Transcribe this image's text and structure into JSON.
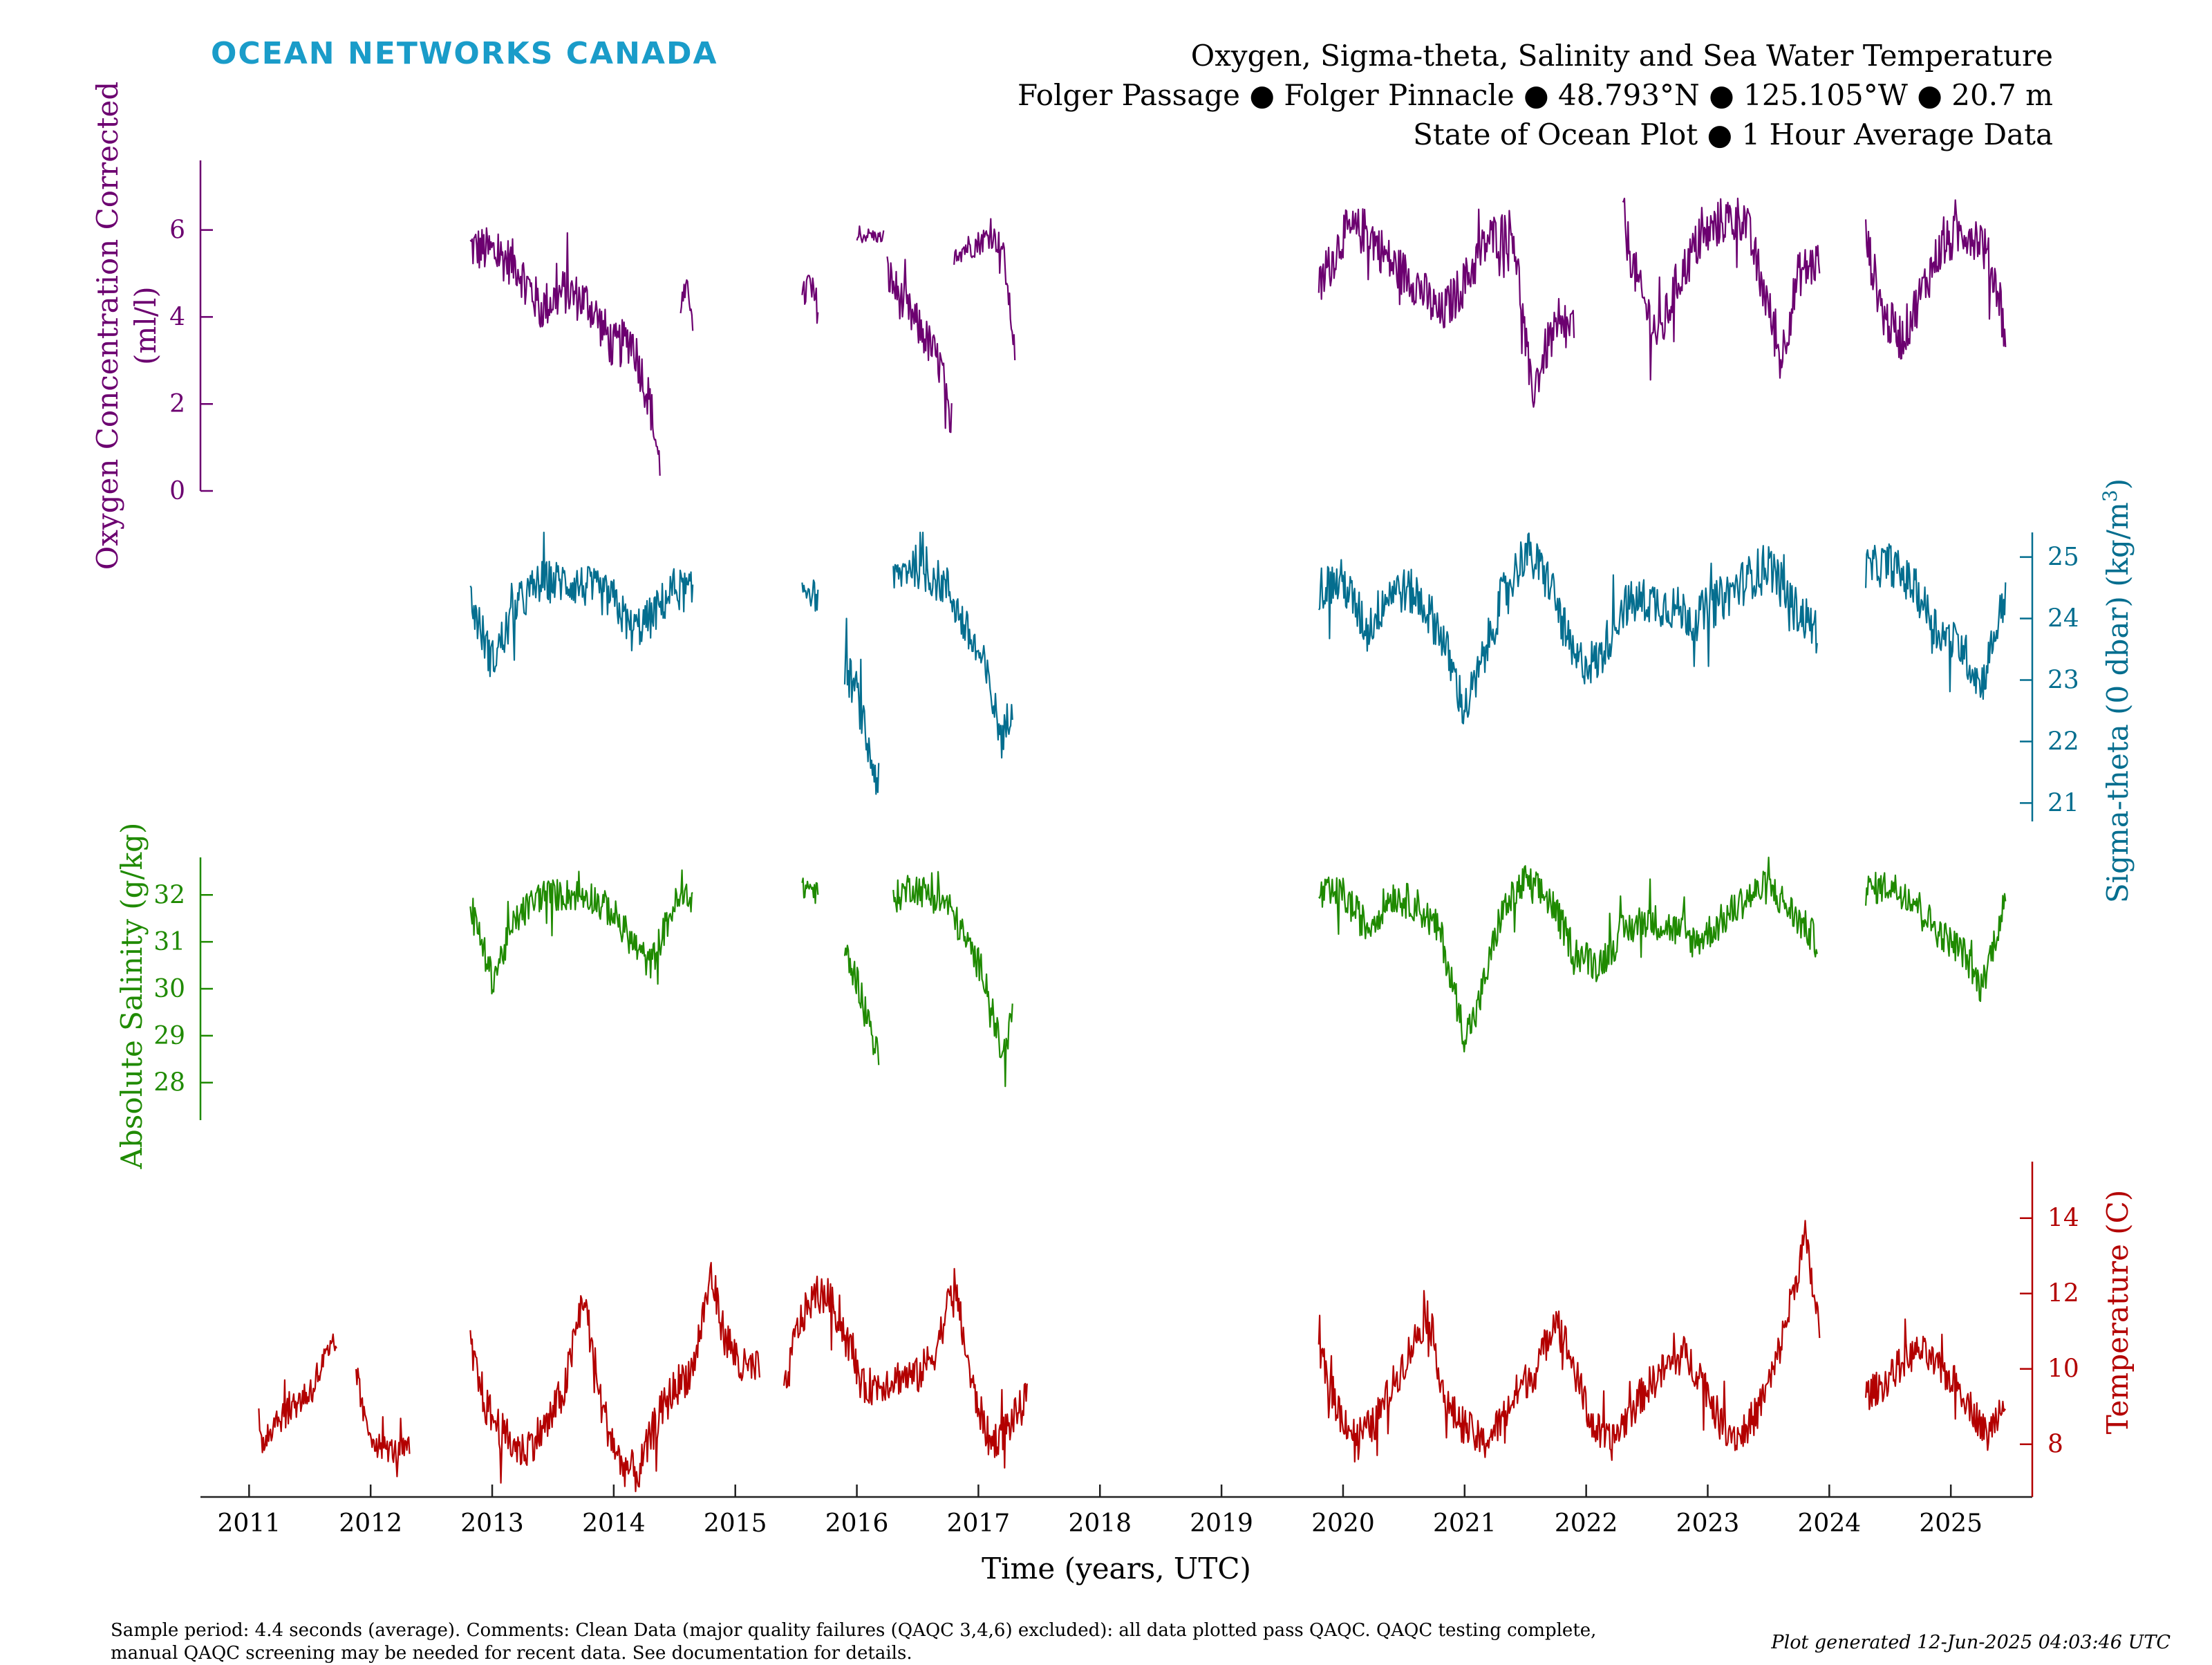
{
  "header": {
    "brand": "OCEAN NETWORKS CANADA",
    "title_line1": "Oxygen, Sigma-theta, Salinity and Sea Water Temperature",
    "title_line2": "Folger Passage ● Folger Pinnacle ● 48.793°N ● 125.105°W ● 20.7 m",
    "title_line3": "State of Ocean Plot ● 1 Hour Average Data"
  },
  "footer": {
    "comments_line1": "Sample period: 4.4 seconds (average). Comments: Clean Data (major quality failures (QAQC 3,4,6) excluded): all data plotted pass QAQC. QAQC testing complete,",
    "comments_line2": "manual QAQC screening may be needed for recent data. See documentation for details.",
    "generated": "Plot generated 12-Jun-2025 04:03:46 UTC"
  },
  "chart_data": {
    "type": "line",
    "xlabel": "Time (years, UTC)",
    "xlim": [
      2010.6,
      2025.67
    ],
    "x_ticks": [
      2011,
      2012,
      2013,
      2014,
      2015,
      2016,
      2017,
      2018,
      2019,
      2020,
      2021,
      2022,
      2023,
      2024,
      2025
    ],
    "colors": {
      "oxygen": "#6c0070",
      "sigma": "#046e8f",
      "salinity": "#1f8a00",
      "temperature": "#b30000",
      "brand": "#1a9cc9"
    },
    "panels": [
      {
        "key": "oxygen",
        "ylabel_line1": "Oxygen Concentration Corrected",
        "ylabel_line2": "(ml/l)",
        "axis_side": "left",
        "ylim": [
          0,
          7.6
        ],
        "ticks": [
          0,
          2,
          4,
          6
        ],
        "segments": [
          {
            "x": [
              2012.82,
              2013.0,
              2013.2,
              2013.4,
              2013.6,
              2013.8,
              2014.0,
              2014.15,
              2014.3,
              2014.38
            ],
            "y": [
              5.6,
              5.5,
              5.2,
              4.2,
              4.6,
              4.3,
              3.3,
              3.5,
              2.0,
              0.5
            ],
            "noise": 0.55
          },
          {
            "x": [
              2014.55,
              2014.6,
              2014.65
            ],
            "y": [
              4.3,
              4.6,
              4.2
            ],
            "noise": 0.3
          },
          {
            "x": [
              2015.55,
              2015.6,
              2015.68
            ],
            "y": [
              4.3,
              4.8,
              4.2
            ],
            "noise": 0.4
          },
          {
            "x": [
              2016.0,
              2016.1,
              2016.22
            ],
            "y": [
              5.8,
              5.9,
              5.8
            ],
            "noise": 0.15
          },
          {
            "x": [
              2016.25,
              2016.4,
              2016.55,
              2016.7,
              2016.78
            ],
            "y": [
              5.0,
              4.2,
              3.6,
              2.8,
              1.0
            ],
            "noise": 0.5
          },
          {
            "x": [
              2016.8,
              2016.9,
              2017.0,
              2017.1,
              2017.2,
              2017.3
            ],
            "y": [
              5.5,
              5.6,
              5.7,
              5.9,
              5.6,
              3.2
            ],
            "noise": 0.3
          },
          {
            "x": [
              2019.8,
              2020.0,
              2020.2,
              2020.4,
              2020.6,
              2020.8,
              2021.0,
              2021.2,
              2021.4,
              2021.55,
              2021.7,
              2021.9
            ],
            "y": [
              4.6,
              5.9,
              6.0,
              5.2,
              4.8,
              4.0,
              4.8,
              5.8,
              6.0,
              2.2,
              3.5,
              3.8
            ],
            "noise": 0.55
          },
          {
            "x": [
              2022.3,
              2022.45,
              2022.6,
              2022.75,
              2022.9,
              2023.1,
              2023.3,
              2023.5,
              2023.6,
              2023.75,
              2023.92
            ],
            "y": [
              6.2,
              4.5,
              3.5,
              4.8,
              5.6,
              6.2,
              6.3,
              4.2,
              3.0,
              5.0,
              5.3
            ],
            "noise": 0.55
          },
          {
            "x": [
              2024.3,
              2024.45,
              2024.6,
              2024.75,
              2024.9,
              2025.1,
              2025.25,
              2025.4,
              2025.45
            ],
            "y": [
              5.8,
              4.0,
              3.5,
              4.5,
              5.5,
              6.0,
              5.8,
              4.5,
              3.5
            ],
            "noise": 0.55
          }
        ]
      },
      {
        "key": "sigma",
        "ylabel_line1": "Sigma-theta (0 dbar) (kg/m",
        "ylabel_sup": "3",
        "ylabel_end": ")",
        "axis_side": "right",
        "ylim": [
          20.7,
          25.4
        ],
        "ticks": [
          21,
          22,
          23,
          24,
          25
        ],
        "segments": [
          {
            "x": [
              2012.82,
              2013.0,
              2013.2,
              2013.4,
              2013.6,
              2013.8,
              2014.0,
              2014.15,
              2014.3,
              2014.5,
              2014.65
            ],
            "y": [
              24.3,
              23.3,
              24.2,
              24.6,
              24.6,
              24.5,
              24.3,
              23.8,
              24.0,
              24.5,
              24.4
            ],
            "noise": 0.35
          },
          {
            "x": [
              2015.55,
              2015.6,
              2015.68
            ],
            "y": [
              24.5,
              24.5,
              24.3
            ],
            "noise": 0.25
          },
          {
            "x": [
              2015.9,
              2016.0,
              2016.1,
              2016.18
            ],
            "y": [
              23.2,
              22.8,
              21.8,
              21.3
            ],
            "noise": 0.35
          },
          {
            "x": [
              2016.3,
              2016.45,
              2016.6,
              2016.75,
              2016.9,
              2017.05,
              2017.2,
              2017.28
            ],
            "y": [
              24.6,
              24.9,
              24.7,
              24.5,
              23.8,
              23.2,
              22.0,
              22.7
            ],
            "noise": 0.35
          },
          {
            "x": [
              2019.8,
              2020.0,
              2020.2,
              2020.4,
              2020.6,
              2020.8,
              2021.0,
              2021.1,
              2021.3,
              2021.5,
              2021.7,
              2021.9,
              2022.1,
              2022.3,
              2022.5,
              2022.7,
              2022.9,
              2023.1,
              2023.3,
              2023.5,
              2023.7,
              2023.9
            ],
            "y": [
              24.5,
              24.6,
              23.8,
              24.5,
              24.4,
              23.8,
              22.5,
              23.0,
              24.3,
              25.1,
              24.6,
              23.3,
              23.3,
              24.2,
              24.3,
              24.2,
              24.0,
              24.3,
              24.6,
              24.9,
              24.2,
              23.8
            ],
            "noise": 0.38
          },
          {
            "x": [
              2024.3,
              2024.5,
              2024.7,
              2024.9,
              2025.1,
              2025.25,
              2025.45
            ],
            "y": [
              24.8,
              24.9,
              24.5,
              23.8,
              23.5,
              22.9,
              24.4
            ],
            "noise": 0.35
          }
        ]
      },
      {
        "key": "salinity",
        "ylabel_line1": "Absolute Salinity (g/kg)",
        "axis_side": "left",
        "ylim": [
          27.2,
          32.8
        ],
        "ticks": [
          28,
          29,
          30,
          31,
          32
        ],
        "segments": [
          {
            "x": [
              2012.82,
              2013.0,
              2013.2,
              2013.4,
              2013.6,
              2013.8,
              2014.0,
              2014.15,
              2014.3,
              2014.5,
              2014.65
            ],
            "y": [
              31.8,
              30.2,
              31.5,
              32.0,
              32.0,
              32.0,
              31.6,
              31.0,
              30.5,
              31.8,
              32.0
            ],
            "noise": 0.35
          },
          {
            "x": [
              2015.55,
              2015.6,
              2015.68
            ],
            "y": [
              32.1,
              32.2,
              32.0
            ],
            "noise": 0.25
          },
          {
            "x": [
              2015.9,
              2016.0,
              2016.1,
              2016.18
            ],
            "y": [
              30.8,
              30.2,
              29.3,
              28.5
            ],
            "noise": 0.35
          },
          {
            "x": [
              2016.3,
              2016.45,
              2016.6,
              2016.75,
              2016.9,
              2017.05,
              2017.2,
              2017.28
            ],
            "y": [
              31.9,
              32.2,
              32.0,
              31.8,
              31.0,
              30.3,
              28.5,
              29.5
            ],
            "noise": 0.35
          },
          {
            "x": [
              2019.8,
              2020.0,
              2020.2,
              2020.4,
              2020.6,
              2020.8,
              2021.0,
              2021.1,
              2021.3,
              2021.5,
              2021.7,
              2021.9,
              2022.1,
              2022.3,
              2022.5,
              2022.7,
              2022.9,
              2023.1,
              2023.3,
              2023.5,
              2023.7,
              2023.9
            ],
            "y": [
              32.0,
              32.0,
              31.3,
              32.0,
              31.8,
              31.2,
              29.0,
              29.5,
              31.6,
              32.3,
              31.9,
              30.8,
              30.5,
              31.2,
              31.5,
              31.3,
              31.0,
              31.4,
              31.9,
              32.2,
              31.6,
              31.0
            ],
            "noise": 0.38
          },
          {
            "x": [
              2024.3,
              2024.5,
              2024.7,
              2024.9,
              2025.1,
              2025.25,
              2025.45
            ],
            "y": [
              32.1,
              32.2,
              31.9,
              31.2,
              30.8,
              30.0,
              31.9
            ],
            "noise": 0.35
          }
        ]
      },
      {
        "key": "temperature",
        "ylabel_line1": "Temperature (C)",
        "axis_side": "right",
        "ylim": [
          6.6,
          15.5
        ],
        "ticks": [
          8,
          10,
          12,
          14
        ],
        "segments": [
          {
            "x": [
              2011.08,
              2011.2,
              2011.35,
              2011.5,
              2011.62,
              2011.72
            ],
            "y": [
              7.9,
              8.6,
              9.0,
              9.4,
              10.2,
              10.6
            ],
            "noise": 0.45
          },
          {
            "x": [
              2011.88,
              2011.95,
              2012.05,
              2012.2,
              2012.32
            ],
            "y": [
              10.0,
              8.6,
              8.0,
              7.8,
              7.9
            ],
            "noise": 0.35
          },
          {
            "x": [
              2012.82,
              2012.95,
              2013.1,
              2013.25,
              2013.45,
              2013.6,
              2013.75,
              2013.9,
              2014.05,
              2014.2,
              2014.35,
              2014.5,
              2014.65,
              2014.8,
              2014.9,
              2015.05,
              2015.2
            ],
            "y": [
              10.5,
              9.0,
              8.2,
              7.8,
              8.5,
              9.5,
              12.0,
              9.0,
              7.5,
              7.2,
              8.6,
              9.5,
              10.0,
              12.5,
              11.0,
              10.0,
              10.0
            ],
            "noise": 0.55
          },
          {
            "x": [
              2015.4,
              2015.5,
              2015.62,
              2015.75,
              2015.9,
              2016.05,
              2016.2,
              2016.35,
              2016.5,
              2016.65,
              2016.8,
              2016.95,
              2017.1,
              2017.25,
              2017.4
            ],
            "y": [
              9.2,
              11.0,
              11.8,
              12.0,
              11.0,
              9.5,
              9.6,
              9.8,
              9.8,
              10.5,
              12.3,
              9.5,
              8.0,
              8.5,
              9.2
            ],
            "noise": 0.5
          },
          {
            "x": [
              2019.8,
              2019.95,
              2020.1,
              2020.25,
              2020.4,
              2020.55,
              2020.7,
              2020.85,
              2021.0,
              2021.15,
              2021.3,
              2021.45,
              2021.6,
              2021.75,
              2021.9,
              2022.05,
              2022.2,
              2022.35,
              2022.5,
              2022.65,
              2022.8,
              2022.95,
              2023.1,
              2023.25,
              2023.4,
              2023.55,
              2023.7,
              2023.8,
              2023.92
            ],
            "y": [
              10.5,
              9.0,
              8.2,
              8.5,
              9.5,
              10.5,
              11.5,
              9.0,
              8.5,
              8.0,
              8.6,
              9.5,
              10.0,
              11.5,
              10.0,
              8.5,
              8.0,
              8.8,
              9.5,
              10.0,
              10.4,
              9.8,
              8.6,
              8.2,
              8.8,
              10.0,
              12.0,
              13.5,
              11.0
            ],
            "noise": 0.5
          },
          {
            "x": [
              2024.3,
              2024.45,
              2024.6,
              2024.75,
              2024.9,
              2025.05,
              2025.2,
              2025.3,
              2025.45
            ],
            "y": [
              9.3,
              9.6,
              10.2,
              10.5,
              10.0,
              9.6,
              8.8,
              8.2,
              9.3
            ],
            "noise": 0.45
          }
        ]
      }
    ]
  }
}
